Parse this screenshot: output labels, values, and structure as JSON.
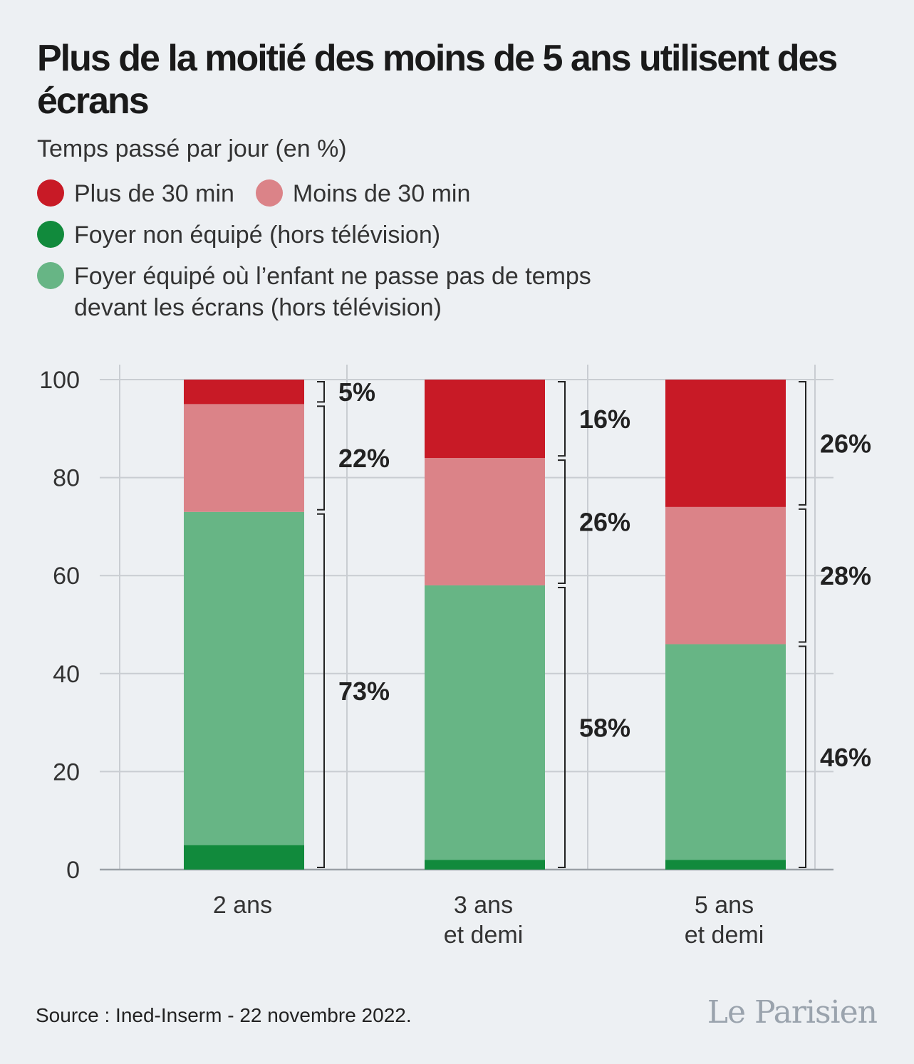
{
  "title": "Plus de la moitié des moins de 5 ans utilisent des écrans",
  "subtitle": "Temps passé par jour (en %)",
  "legend": [
    {
      "label": "Plus de 30 min",
      "color": "#c81a26"
    },
    {
      "label": "Moins de 30 min",
      "color": "#db8388"
    },
    {
      "label": "Foyer non équipé (hors télévision)",
      "color": "#118a3c"
    },
    {
      "label": "Foyer équipé où l’enfant ne passe pas de temps devant les écrans (hors télévision)",
      "color": "#67b585"
    }
  ],
  "source": "Source : Ined-Inserm - 22 novembre 2022.",
  "logo": "Le Parisien",
  "chart_data": {
    "type": "bar",
    "stacked": true,
    "categories": [
      "2 ans",
      "3 ans\net demi",
      "5 ans\net demi"
    ],
    "ylim": [
      0,
      100
    ],
    "yticks": [
      0,
      20,
      40,
      60,
      80,
      100
    ],
    "series": [
      {
        "name": "Foyer non équipé (hors télévision)",
        "color": "#118a3c",
        "values": [
          5,
          2,
          2
        ]
      },
      {
        "name": "Foyer équipé où l’enfant ne passe pas de temps devant les écrans (hors télévision)",
        "color": "#67b585",
        "values": [
          68,
          56,
          44
        ]
      },
      {
        "name": "Moins de 30 min",
        "color": "#db8388",
        "values": [
          22,
          26,
          28
        ]
      },
      {
        "name": "Plus de 30 min",
        "color": "#c81a26",
        "values": [
          5,
          16,
          26
        ]
      }
    ],
    "brackets": [
      [
        {
          "from": 0,
          "to": 73,
          "label": "73%"
        },
        {
          "from": 73,
          "to": 95,
          "label": "22%"
        },
        {
          "from": 95,
          "to": 100,
          "label": "5%"
        }
      ],
      [
        {
          "from": 0,
          "to": 58,
          "label": "58%"
        },
        {
          "from": 58,
          "to": 84,
          "label": "26%"
        },
        {
          "from": 84,
          "to": 100,
          "label": "16%"
        }
      ],
      [
        {
          "from": 0,
          "to": 46,
          "label": "46%"
        },
        {
          "from": 46,
          "to": 74,
          "label": "28%"
        },
        {
          "from": 74,
          "to": 100,
          "label": "26%"
        }
      ]
    ],
    "grid": true
  }
}
